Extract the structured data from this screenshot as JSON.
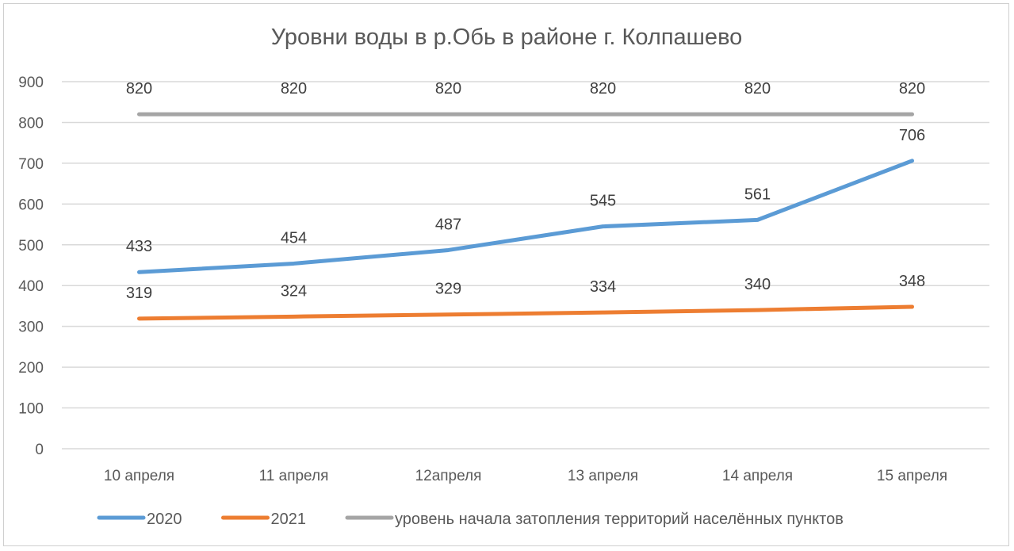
{
  "chart_data": {
    "type": "line",
    "title": "Уровни воды в р.Обь в районе г. Колпашево",
    "xlabel": "",
    "ylabel": "",
    "categories": [
      "10 апреля",
      "11 апреля",
      "12апреля",
      "13 апреля",
      "14 апреля",
      "15 апреля"
    ],
    "ylim": [
      0,
      900
    ],
    "yticks": [
      0,
      100,
      200,
      300,
      400,
      500,
      600,
      700,
      800,
      900
    ],
    "grid": true,
    "legend_position": "bottom",
    "data_labels": true,
    "series": [
      {
        "name": "2020",
        "color": "#5b9bd5",
        "values": [
          433,
          454,
          487,
          545,
          561,
          706
        ]
      },
      {
        "name": "2021",
        "color": "#ed7d31",
        "values": [
          319,
          324,
          329,
          334,
          340,
          348
        ]
      },
      {
        "name": "уровень начала затопления территорий населённых пунктов",
        "color": "#a5a5a5",
        "values": [
          820,
          820,
          820,
          820,
          820,
          820
        ]
      }
    ]
  }
}
